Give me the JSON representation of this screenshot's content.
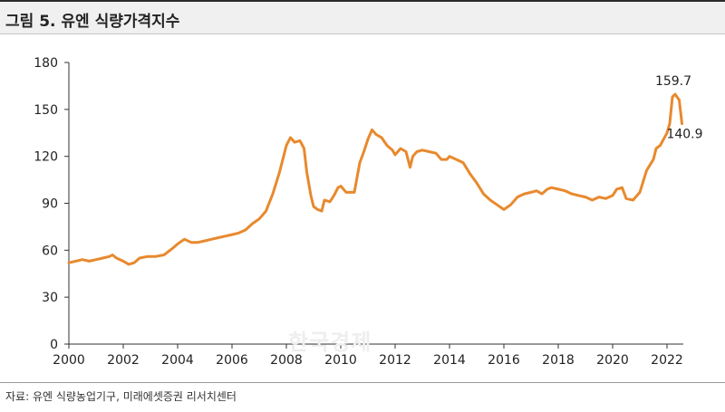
{
  "header": {
    "title": "그림 5. 유엔 식량가격지수"
  },
  "footer": {
    "source": "자료: 유엔 식량농업기구, 미래에셋증권 리서치센터"
  },
  "watermark": {
    "text": "한국경제"
  },
  "chart_data": {
    "type": "line",
    "title": "",
    "xlabel": "",
    "ylabel": "",
    "xlim": [
      2000,
      2022.6
    ],
    "ylim": [
      0,
      180
    ],
    "yticks": [
      0,
      30,
      60,
      90,
      120,
      150,
      180
    ],
    "xticks": [
      2000,
      2002,
      2004,
      2006,
      2008,
      2010,
      2012,
      2014,
      2016,
      2018,
      2020,
      2022
    ],
    "xtick_labels": [
      "2000",
      "2002",
      "2004",
      "2006",
      "2008",
      "2010",
      "2012",
      "2014",
      "2016",
      "2018",
      "2020",
      "2022"
    ],
    "ytick_labels": [
      "0",
      "30",
      "60",
      "90",
      "120",
      "150",
      "180"
    ],
    "grid": false,
    "legend": "none",
    "line_color": "#e8892e",
    "series": [
      {
        "x": [
          2000.0,
          2000.25,
          2000.5,
          2000.75,
          2001.0,
          2001.25,
          2001.5,
          2001.6,
          2001.75,
          2002.0,
          2002.2,
          2002.4,
          2002.6,
          2002.9,
          2003.2,
          2003.5,
          2003.8,
          2004.0,
          2004.25,
          2004.5,
          2004.75,
          2005.0,
          2005.25,
          2005.5,
          2005.75,
          2006.0,
          2006.25,
          2006.5,
          2006.75,
          2007.0,
          2007.25,
          2007.5,
          2007.75,
          2008.0,
          2008.15,
          2008.3,
          2008.5,
          2008.65,
          2008.75,
          2008.9,
          2009.0,
          2009.15,
          2009.3,
          2009.4,
          2009.6,
          2009.75,
          2009.9,
          2010.0,
          2010.2,
          2010.35,
          2010.5,
          2010.7,
          2010.85,
          2011.0,
          2011.15,
          2011.3,
          2011.5,
          2011.7,
          2011.9,
          2012.0,
          2012.2,
          2012.4,
          2012.55,
          2012.65,
          2012.8,
          2013.0,
          2013.25,
          2013.5,
          2013.7,
          2013.9,
          2014.0,
          2014.25,
          2014.5,
          2014.75,
          2015.0,
          2015.25,
          2015.5,
          2015.75,
          2016.0,
          2016.25,
          2016.5,
          2016.75,
          2017.0,
          2017.2,
          2017.4,
          2017.6,
          2017.75,
          2018.0,
          2018.25,
          2018.5,
          2018.75,
          2019.0,
          2019.25,
          2019.5,
          2019.75,
          2020.0,
          2020.15,
          2020.35,
          2020.5,
          2020.75,
          2021.0,
          2021.25,
          2021.5,
          2021.6,
          2021.75,
          2022.0,
          2022.1,
          2022.2,
          2022.3,
          2022.45,
          2022.55
        ],
        "y": [
          52,
          53,
          54,
          53,
          54,
          55,
          56,
          57,
          55,
          53,
          51,
          52,
          55,
          56,
          56,
          57,
          61,
          64,
          67,
          65,
          65,
          66,
          67,
          68,
          69,
          70,
          71,
          73,
          77,
          80,
          85,
          96,
          110,
          127,
          132,
          129,
          130,
          125,
          110,
          95,
          88,
          86,
          85,
          92,
          91,
          95,
          100,
          101,
          97,
          97,
          97,
          116,
          123,
          131,
          137,
          134,
          132,
          127,
          124,
          121,
          125,
          123,
          113,
          120,
          123,
          124,
          123,
          122,
          118,
          118,
          120,
          118,
          116,
          109,
          103,
          96,
          92,
          89,
          86,
          89,
          94,
          96,
          97,
          98,
          96,
          99,
          100,
          99,
          98,
          96,
          95,
          94,
          92,
          94,
          93,
          95,
          99,
          100,
          93,
          92,
          97,
          111,
          118,
          125,
          127,
          135,
          141,
          158,
          159.7,
          156,
          140.9
        ]
      }
    ],
    "annotations": [
      {
        "text": "159.7",
        "x": 2022.2,
        "y": 159.7
      },
      {
        "text": "140.9",
        "x": 2022.55,
        "y": 140.9
      }
    ]
  }
}
